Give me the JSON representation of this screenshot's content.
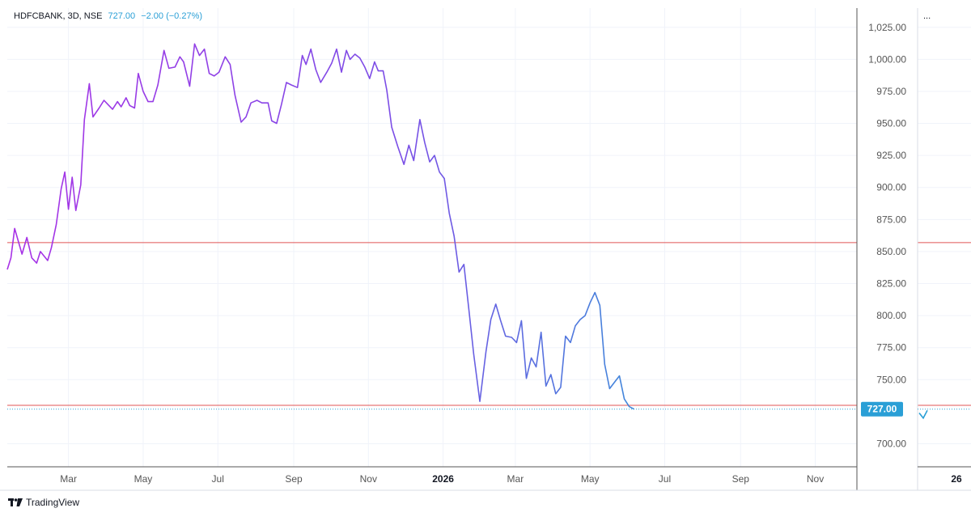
{
  "legend": {
    "symbol": "HDFCBANK, 3D, NSE",
    "last": "727.00",
    "change": "−2.00 (−0.27%)"
  },
  "mini_panel": {
    "menu": "...",
    "x_label": "26"
  },
  "brand": {
    "name": "TradingView"
  },
  "colors": {
    "line_start": "#a832e6",
    "line_end": "#2a9fd6",
    "hline": "#e05555",
    "price_badge": "#2a9fd6",
    "grid": "#f0f3fa",
    "axis": "#555555"
  },
  "chart_data": {
    "type": "line",
    "title": "",
    "xlabel": "",
    "ylabel": "",
    "ylim": [
      682,
      1040
    ],
    "xlim": [
      "2025-01-10",
      "2026-12-05"
    ],
    "grid": true,
    "y_ticks": [
      "1,025.00",
      "1,000.00",
      "975.00",
      "950.00",
      "925.00",
      "900.00",
      "875.00",
      "850.00",
      "825.00",
      "800.00",
      "775.00",
      "750.00",
      "700.00"
    ],
    "x_ticks": [
      {
        "label": "Mar",
        "date": "2025-03-01"
      },
      {
        "label": "May",
        "date": "2025-05-01"
      },
      {
        "label": "Jul",
        "date": "2025-07-01"
      },
      {
        "label": "Sep",
        "date": "2025-09-01"
      },
      {
        "label": "Nov",
        "date": "2025-11-01"
      },
      {
        "label": "2026",
        "date": "2026-01-01"
      },
      {
        "label": "Mar",
        "date": "2026-03-01"
      },
      {
        "label": "May",
        "date": "2026-05-01"
      },
      {
        "label": "Jul",
        "date": "2026-07-01"
      },
      {
        "label": "Sep",
        "date": "2026-09-01"
      },
      {
        "label": "Nov",
        "date": "2026-11-01"
      }
    ],
    "horizontal_lines": [
      857,
      730
    ],
    "last_price": {
      "value": 727,
      "label": "727.00"
    },
    "series": [
      {
        "points": [
          [
            "2025-01-10",
            836
          ],
          [
            "2025-01-13",
            845
          ],
          [
            "2025-01-16",
            868
          ],
          [
            "2025-01-22",
            848
          ],
          [
            "2025-01-26",
            861
          ],
          [
            "2025-01-30",
            845
          ],
          [
            "2025-02-03",
            841
          ],
          [
            "2025-02-06",
            850
          ],
          [
            "2025-02-12",
            843
          ],
          [
            "2025-02-15",
            853
          ],
          [
            "2025-02-19",
            871
          ],
          [
            "2025-02-23",
            899
          ],
          [
            "2025-02-26",
            912
          ],
          [
            "2025-03-01",
            883
          ],
          [
            "2025-03-04",
            908
          ],
          [
            "2025-03-07",
            882
          ],
          [
            "2025-03-11",
            902
          ],
          [
            "2025-03-14",
            953
          ],
          [
            "2025-03-18",
            981
          ],
          [
            "2025-03-21",
            955
          ],
          [
            "2025-03-26",
            962
          ],
          [
            "2025-03-30",
            968
          ],
          [
            "2025-04-03",
            964
          ],
          [
            "2025-04-06",
            961
          ],
          [
            "2025-04-10",
            967
          ],
          [
            "2025-04-13",
            963
          ],
          [
            "2025-04-17",
            970
          ],
          [
            "2025-04-20",
            964
          ],
          [
            "2025-04-24",
            962
          ],
          [
            "2025-04-27",
            989
          ],
          [
            "2025-05-01",
            975
          ],
          [
            "2025-05-05",
            967
          ],
          [
            "2025-05-09",
            967
          ],
          [
            "2025-05-13",
            980
          ],
          [
            "2025-05-18",
            1007
          ],
          [
            "2025-05-22",
            993
          ],
          [
            "2025-05-27",
            994
          ],
          [
            "2025-05-31",
            1002
          ],
          [
            "2025-06-03",
            998
          ],
          [
            "2025-06-08",
            979
          ],
          [
            "2025-06-12",
            1012
          ],
          [
            "2025-06-16",
            1003
          ],
          [
            "2025-06-20",
            1008
          ],
          [
            "2025-06-24",
            989
          ],
          [
            "2025-06-28",
            987
          ],
          [
            "2025-07-02",
            990
          ],
          [
            "2025-07-07",
            1002
          ],
          [
            "2025-07-11",
            996
          ],
          [
            "2025-07-15",
            972
          ],
          [
            "2025-07-20",
            951
          ],
          [
            "2025-07-24",
            955
          ],
          [
            "2025-07-28",
            966
          ],
          [
            "2025-08-02",
            968
          ],
          [
            "2025-08-06",
            966
          ],
          [
            "2025-08-11",
            966
          ],
          [
            "2025-08-14",
            952
          ],
          [
            "2025-08-18",
            950
          ],
          [
            "2025-08-22",
            965
          ],
          [
            "2025-08-26",
            982
          ],
          [
            "2025-08-30",
            980
          ],
          [
            "2025-09-04",
            978
          ],
          [
            "2025-09-08",
            1003
          ],
          [
            "2025-09-11",
            996
          ],
          [
            "2025-09-15",
            1008
          ],
          [
            "2025-09-19",
            992
          ],
          [
            "2025-09-23",
            982
          ],
          [
            "2025-09-28",
            990
          ],
          [
            "2025-10-02",
            997
          ],
          [
            "2025-10-06",
            1008
          ],
          [
            "2025-10-10",
            990
          ],
          [
            "2025-10-14",
            1007
          ],
          [
            "2025-10-17",
            1000
          ],
          [
            "2025-10-21",
            1004
          ],
          [
            "2025-10-25",
            1001
          ],
          [
            "2025-10-29",
            994
          ],
          [
            "2025-11-02",
            985
          ],
          [
            "2025-11-06",
            998
          ],
          [
            "2025-11-09",
            991
          ],
          [
            "2025-11-13",
            991
          ],
          [
            "2025-11-16",
            976
          ],
          [
            "2025-11-20",
            947
          ],
          [
            "2025-11-25",
            932
          ],
          [
            "2025-11-30",
            918
          ],
          [
            "2025-12-04",
            933
          ],
          [
            "2025-12-08",
            921
          ],
          [
            "2025-12-13",
            953
          ],
          [
            "2025-12-17",
            935
          ],
          [
            "2025-12-21",
            920
          ],
          [
            "2025-12-25",
            925
          ],
          [
            "2025-12-29",
            912
          ],
          [
            "2026-01-02",
            907
          ],
          [
            "2026-01-06",
            880
          ],
          [
            "2026-01-10",
            862
          ],
          [
            "2026-01-14",
            834
          ],
          [
            "2026-01-18",
            840
          ],
          [
            "2026-01-22",
            805
          ],
          [
            "2026-01-26",
            770
          ],
          [
            "2026-01-31",
            733
          ],
          [
            "2026-02-05",
            772
          ],
          [
            "2026-02-09",
            797
          ],
          [
            "2026-02-13",
            809
          ],
          [
            "2026-02-17",
            796
          ],
          [
            "2026-02-21",
            784
          ],
          [
            "2026-02-26",
            783
          ],
          [
            "2026-03-02",
            779
          ],
          [
            "2026-03-06",
            796
          ],
          [
            "2026-03-10",
            751
          ],
          [
            "2026-03-14",
            767
          ],
          [
            "2026-03-18",
            760
          ],
          [
            "2026-03-22",
            787
          ],
          [
            "2026-03-26",
            745
          ],
          [
            "2026-03-30",
            754
          ],
          [
            "2026-04-03",
            739
          ],
          [
            "2026-04-07",
            744
          ],
          [
            "2026-04-11",
            784
          ],
          [
            "2026-04-15",
            779
          ],
          [
            "2026-04-19",
            792
          ],
          [
            "2026-04-23",
            797
          ],
          [
            "2026-04-27",
            800
          ],
          [
            "2026-05-01",
            810
          ],
          [
            "2026-05-05",
            818
          ],
          [
            "2026-05-09",
            808
          ],
          [
            "2026-05-13",
            762
          ],
          [
            "2026-05-17",
            743
          ],
          [
            "2026-05-21",
            748
          ],
          [
            "2026-05-25",
            753
          ],
          [
            "2026-05-29",
            735
          ],
          [
            "2026-06-02",
            729
          ],
          [
            "2026-06-06",
            727
          ]
        ]
      }
    ],
    "mini_series": [
      724,
      720,
      726
    ]
  }
}
